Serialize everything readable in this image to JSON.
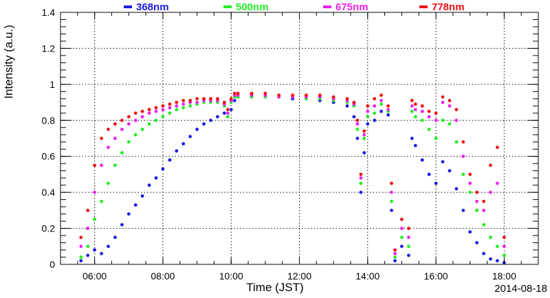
{
  "chart_data": {
    "type": "scatter",
    "title": "",
    "xlabel": "Time (JST)",
    "ylabel": "Intensity (a.u.)",
    "date_label": "2014-08-18",
    "x_unit": "hours (JST)",
    "xlim": [
      5.0,
      19.0
    ],
    "ylim": [
      0,
      1.4
    ],
    "grid": true,
    "legend_position": "top",
    "x_ticks": [
      {
        "value": 6,
        "label": "06:00"
      },
      {
        "value": 8,
        "label": "08:00"
      },
      {
        "value": 10,
        "label": "10:00"
      },
      {
        "value": 12,
        "label": "12:00"
      },
      {
        "value": 14,
        "label": "14:00"
      },
      {
        "value": 16,
        "label": "16:00"
      },
      {
        "value": 18,
        "label": "18:00"
      }
    ],
    "y_ticks": [
      {
        "value": 0,
        "label": "0"
      },
      {
        "value": 0.2,
        "label": "0.2"
      },
      {
        "value": 0.4,
        "label": "0.4"
      },
      {
        "value": 0.6,
        "label": "0.6"
      },
      {
        "value": 0.8,
        "label": "0.8"
      },
      {
        "value": 1.0,
        "label": "1"
      },
      {
        "value": 1.2,
        "label": "1.2"
      },
      {
        "value": 1.4,
        "label": "1.4"
      }
    ],
    "series": [
      {
        "name": "368nm",
        "color": "#1a1ae6",
        "x": [
          5.6,
          5.8,
          6.0,
          6.2,
          6.4,
          6.6,
          6.8,
          7.0,
          7.2,
          7.4,
          7.6,
          7.8,
          8.0,
          8.2,
          8.4,
          8.6,
          8.8,
          9.0,
          9.2,
          9.4,
          9.6,
          9.8,
          9.9,
          10.0,
          10.1,
          10.2,
          10.6,
          11.0,
          11.4,
          11.8,
          12.2,
          12.6,
          13.0,
          13.4,
          13.6,
          13.7,
          13.8,
          13.9,
          14.0,
          14.2,
          14.4,
          14.6,
          14.7,
          14.8,
          15.0,
          15.2,
          15.3,
          15.4,
          15.6,
          15.8,
          16.0,
          16.2,
          16.4,
          16.6,
          16.8,
          17.0,
          17.2,
          17.4,
          17.6,
          17.8,
          18.0
        ],
        "y": [
          0.02,
          0.05,
          0.08,
          0.06,
          0.1,
          0.15,
          0.22,
          0.28,
          0.33,
          0.38,
          0.44,
          0.48,
          0.53,
          0.58,
          0.63,
          0.67,
          0.71,
          0.75,
          0.78,
          0.8,
          0.82,
          0.84,
          0.82,
          0.86,
          0.91,
          0.93,
          0.93,
          0.93,
          0.93,
          0.92,
          0.92,
          0.91,
          0.9,
          0.88,
          0.82,
          0.7,
          0.4,
          0.62,
          0.78,
          0.8,
          0.85,
          0.83,
          0.3,
          0.02,
          0.1,
          0.05,
          0.7,
          0.66,
          0.58,
          0.5,
          0.45,
          0.57,
          0.52,
          0.42,
          0.3,
          0.18,
          0.12,
          0.06,
          0.03,
          0.02,
          0.01
        ]
      },
      {
        "name": "500nm",
        "color": "#22ee22",
        "x": [
          5.6,
          5.8,
          6.0,
          6.2,
          6.4,
          6.6,
          6.8,
          7.0,
          7.2,
          7.4,
          7.6,
          7.8,
          8.0,
          8.2,
          8.4,
          8.6,
          8.8,
          9.0,
          9.2,
          9.4,
          9.6,
          9.8,
          9.9,
          10.0,
          10.1,
          10.2,
          10.6,
          11.0,
          11.4,
          11.8,
          12.2,
          12.6,
          13.0,
          13.4,
          13.6,
          13.7,
          13.8,
          13.9,
          14.0,
          14.2,
          14.4,
          14.6,
          14.7,
          14.8,
          15.0,
          15.2,
          15.3,
          15.4,
          15.6,
          15.8,
          16.0,
          16.2,
          16.4,
          16.6,
          16.8,
          17.0,
          17.2,
          17.4,
          17.6,
          17.8,
          18.0
        ],
        "y": [
          0.04,
          0.1,
          0.25,
          0.35,
          0.45,
          0.55,
          0.62,
          0.68,
          0.72,
          0.75,
          0.78,
          0.8,
          0.82,
          0.84,
          0.86,
          0.87,
          0.88,
          0.89,
          0.9,
          0.9,
          0.9,
          0.88,
          0.82,
          0.9,
          0.93,
          0.93,
          0.93,
          0.93,
          0.93,
          0.93,
          0.92,
          0.92,
          0.91,
          0.9,
          0.88,
          0.75,
          0.45,
          0.7,
          0.82,
          0.84,
          0.89,
          0.85,
          0.35,
          0.04,
          0.15,
          0.1,
          0.85,
          0.82,
          0.8,
          0.75,
          0.7,
          0.8,
          0.78,
          0.68,
          0.5,
          0.4,
          0.3,
          0.22,
          0.15,
          0.1,
          0.05
        ]
      },
      {
        "name": "675nm",
        "color": "#ee22ee",
        "x": [
          5.6,
          5.8,
          6.0,
          6.2,
          6.4,
          6.6,
          6.8,
          7.0,
          7.2,
          7.4,
          7.6,
          7.8,
          8.0,
          8.2,
          8.4,
          8.6,
          8.8,
          9.0,
          9.2,
          9.4,
          9.6,
          9.8,
          9.9,
          10.0,
          10.1,
          10.2,
          10.6,
          11.0,
          11.4,
          11.8,
          12.2,
          12.6,
          13.0,
          13.4,
          13.6,
          13.7,
          13.8,
          13.9,
          14.0,
          14.2,
          14.4,
          14.6,
          14.7,
          14.8,
          15.0,
          15.2,
          15.3,
          15.4,
          15.6,
          15.8,
          16.0,
          16.2,
          16.4,
          16.6,
          16.8,
          17.0,
          17.2,
          17.4,
          17.6,
          17.8,
          18.0
        ],
        "y": [
          0.1,
          0.2,
          0.4,
          0.55,
          0.65,
          0.7,
          0.75,
          0.78,
          0.8,
          0.82,
          0.84,
          0.85,
          0.86,
          0.87,
          0.88,
          0.89,
          0.9,
          0.9,
          0.91,
          0.91,
          0.91,
          0.89,
          0.84,
          0.91,
          0.94,
          0.94,
          0.94,
          0.94,
          0.93,
          0.93,
          0.93,
          0.93,
          0.92,
          0.91,
          0.89,
          0.78,
          0.48,
          0.72,
          0.85,
          0.88,
          0.91,
          0.86,
          0.4,
          0.06,
          0.2,
          0.15,
          0.88,
          0.86,
          0.85,
          0.82,
          0.8,
          0.9,
          0.88,
          0.8,
          0.6,
          0.45,
          0.35,
          0.3,
          0.4,
          0.45,
          0.1
        ]
      },
      {
        "name": "778nm",
        "color": "#ee1111",
        "x": [
          5.6,
          5.8,
          6.0,
          6.2,
          6.4,
          6.6,
          6.8,
          7.0,
          7.2,
          7.4,
          7.6,
          7.8,
          8.0,
          8.2,
          8.4,
          8.6,
          8.8,
          9.0,
          9.2,
          9.4,
          9.6,
          9.8,
          9.9,
          10.0,
          10.1,
          10.2,
          10.6,
          11.0,
          11.4,
          11.8,
          12.2,
          12.6,
          13.0,
          13.4,
          13.6,
          13.7,
          13.8,
          13.9,
          14.0,
          14.2,
          14.4,
          14.6,
          14.7,
          14.8,
          15.0,
          15.2,
          15.3,
          15.4,
          15.6,
          15.8,
          16.0,
          16.2,
          16.4,
          16.6,
          16.8,
          17.0,
          17.2,
          17.4,
          17.6,
          17.8,
          18.0
        ],
        "y": [
          0.15,
          0.3,
          0.55,
          0.7,
          0.75,
          0.78,
          0.8,
          0.82,
          0.84,
          0.85,
          0.86,
          0.87,
          0.88,
          0.89,
          0.9,
          0.91,
          0.91,
          0.92,
          0.92,
          0.92,
          0.92,
          0.9,
          0.86,
          0.92,
          0.95,
          0.95,
          0.95,
          0.95,
          0.94,
          0.94,
          0.94,
          0.94,
          0.93,
          0.92,
          0.9,
          0.8,
          0.5,
          0.74,
          0.88,
          0.92,
          0.94,
          0.88,
          0.45,
          0.08,
          0.25,
          0.2,
          0.91,
          0.89,
          0.88,
          0.85,
          0.84,
          0.93,
          0.91,
          0.86,
          0.68,
          0.5,
          0.4,
          0.35,
          0.55,
          0.65,
          0.15
        ]
      }
    ]
  }
}
